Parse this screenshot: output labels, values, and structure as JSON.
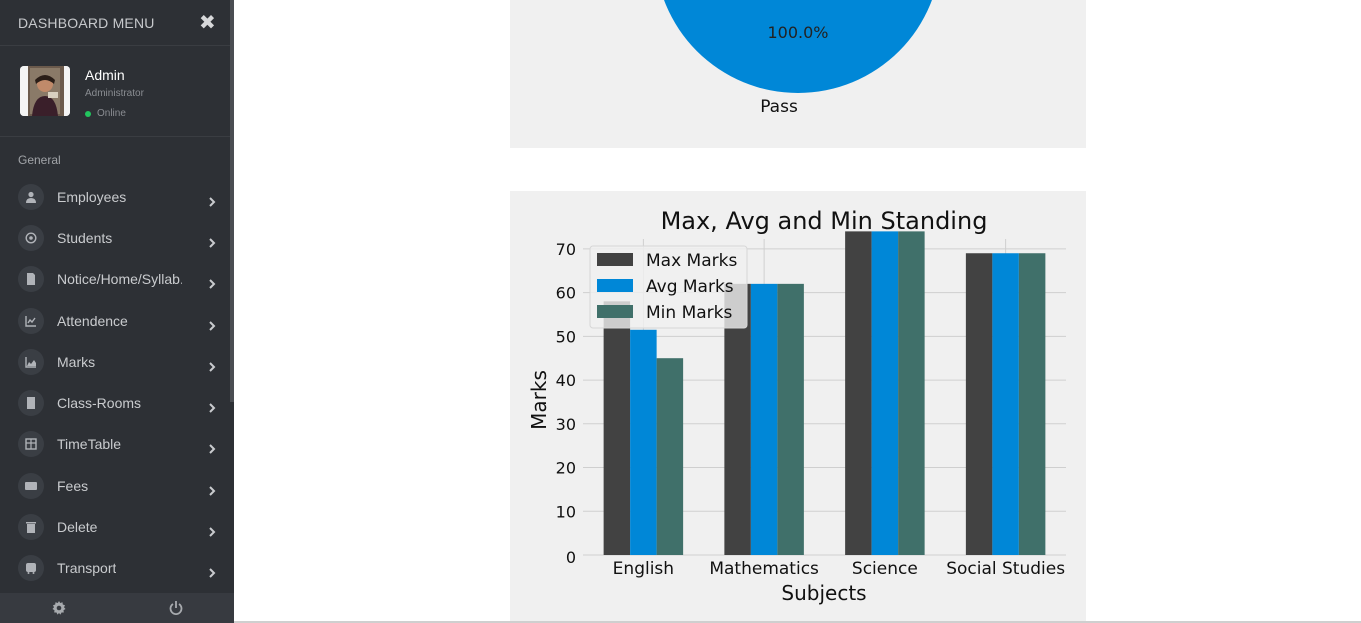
{
  "sidebar": {
    "title": "DASHBOARD MENU",
    "user": {
      "name": "Admin",
      "role": "Administrator",
      "status": "Online"
    },
    "section_label": "General",
    "items": [
      {
        "label": "Employees",
        "icon": "user-icon"
      },
      {
        "label": "Students",
        "icon": "at-icon"
      },
      {
        "label": "Notice/Home/Syllab..",
        "icon": "file-icon"
      },
      {
        "label": "Attendence",
        "icon": "line-chart-icon"
      },
      {
        "label": "Marks",
        "icon": "area-chart-icon"
      },
      {
        "label": "Class-Rooms",
        "icon": "building-icon"
      },
      {
        "label": "TimeTable",
        "icon": "table-icon"
      },
      {
        "label": "Fees",
        "icon": "credit-card-icon"
      },
      {
        "label": "Delete",
        "icon": "trash-icon"
      },
      {
        "label": "Transport",
        "icon": "bus-icon"
      }
    ]
  },
  "colors": {
    "sidebar_bg": "#2d3035",
    "panel_bg": "#f0f0f0",
    "max": "#424242",
    "avg": "#0087d7",
    "min": "#40706a",
    "online": "#22c55e"
  },
  "chart_data": [
    {
      "type": "pie",
      "slices": [
        {
          "label": "Pass",
          "value": 100.0,
          "pct_label": "100.0%"
        }
      ]
    },
    {
      "type": "bar",
      "title": "Max, Avg and Min Standing",
      "xlabel": "Subjects",
      "ylabel": "Marks",
      "categories": [
        "English",
        "Mathematics",
        "Science",
        "Social Studies"
      ],
      "ylim": [
        0,
        75
      ],
      "yticks": [
        0,
        10,
        20,
        30,
        40,
        50,
        60,
        70
      ],
      "grid": true,
      "legend_position": "top-left",
      "series": [
        {
          "name": "Max Marks",
          "values": [
            58,
            62,
            74,
            69
          ]
        },
        {
          "name": "Avg Marks",
          "values": [
            51.5,
            62,
            74,
            69
          ]
        },
        {
          "name": "Min Marks",
          "values": [
            45,
            62,
            74,
            69
          ]
        }
      ]
    }
  ]
}
